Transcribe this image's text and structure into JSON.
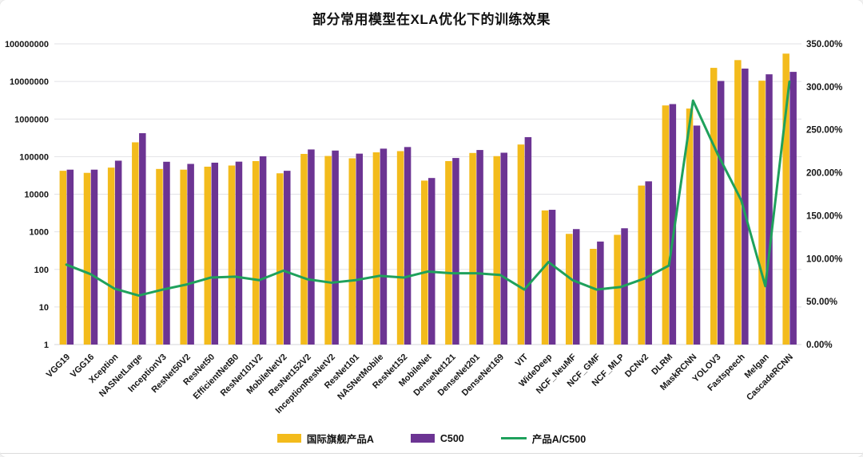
{
  "chart_data": {
    "type": "bar",
    "combo": "bar+line",
    "title": "部分常用模型在XLA优化下的训练效果",
    "categories": [
      "VGG19",
      "VGG16",
      "Xception",
      "NASNetLarge",
      "InceptionV3",
      "ResNet50V2",
      "ResNet50",
      "EfficientNetB0",
      "ResNet101V2",
      "MobileNetV2",
      "ResNet152V2",
      "InceptionResNetV2",
      "ResNet101",
      "NASNetMobile",
      "ResNet152",
      "MobileNet",
      "DenseNet121",
      "DenseNet201",
      "DenseNet169",
      "VIT",
      "WideDeep",
      "NCF_NeuMF",
      "NCF_GMF",
      "NCF_MLP",
      "DCNv2",
      "DLRM",
      "MaskRCNN",
      "YOLOV3",
      "Fastspeech",
      "Melgan",
      "CascadeRCNN"
    ],
    "series": [
      {
        "name": "国际旗舰产品A",
        "type": "bar",
        "axis": "left",
        "color": "#F3BB1C",
        "values": [
          42000,
          37000,
          51000,
          240000,
          47000,
          45000,
          54000,
          58000,
          76000,
          36000,
          118000,
          104000,
          90000,
          130000,
          140000,
          23000,
          76000,
          125000,
          103000,
          210000,
          3700,
          880,
          352,
          830,
          17000,
          2300000,
          1900000,
          23000000,
          37000000,
          10500000,
          55000000
        ]
      },
      {
        "name": "C500",
        "type": "bar",
        "axis": "left",
        "color": "#6C3493",
        "values": [
          45000,
          45000,
          78000,
          420000,
          73000,
          64000,
          69000,
          73500,
          102000,
          42000,
          155000,
          145000,
          120000,
          163000,
          180000,
          27000,
          92000,
          150000,
          127000,
          330000,
          3850,
          1180,
          550,
          1240,
          22000,
          2500000,
          670000,
          10300000,
          22000000,
          15500000,
          18000000
        ]
      },
      {
        "name": "产品A/C500",
        "type": "line",
        "axis": "right",
        "color": "#1FA15C",
        "values_percent": [
          93,
          82,
          65,
          57,
          64,
          70,
          78,
          79,
          75,
          86,
          76,
          72,
          75,
          80,
          78,
          85,
          83,
          83,
          81,
          64,
          96,
          75,
          64,
          67,
          77,
          92,
          284,
          223,
          168,
          68,
          306
        ]
      }
    ],
    "left_axis": {
      "scale": "log",
      "min": 1,
      "max": 100000000,
      "ticks": [
        "1",
        "10",
        "100",
        "1000",
        "10000",
        "100000",
        "1000000",
        "10000000",
        "100000000"
      ]
    },
    "right_axis": {
      "min_percent": 0,
      "max_percent": 350,
      "ticks": [
        "0.00%",
        "50.00%",
        "100.00%",
        "150.00%",
        "200.00%",
        "250.00%",
        "300.00%",
        "350.00%"
      ]
    },
    "grid": true,
    "legend_position": "bottom",
    "colors": {
      "gridline": "#E2E2E6",
      "axis_line": "#D6D6DA",
      "text": "#161616"
    }
  }
}
